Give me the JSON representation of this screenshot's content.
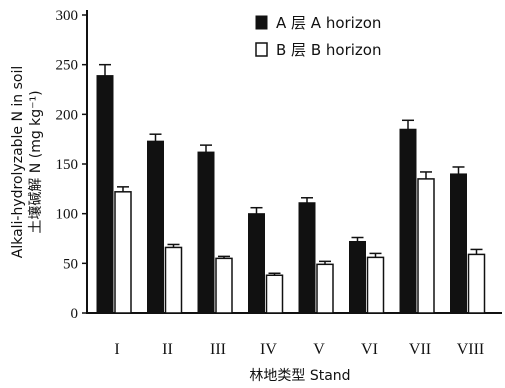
{
  "chart_data": {
    "type": "bar",
    "categories": [
      "I",
      "II",
      "III",
      "IV",
      "V",
      "VI",
      "VII",
      "VIII"
    ],
    "series": [
      {
        "name": "A 层 A horizon",
        "color": "#111111",
        "values": [
          239,
          173,
          162,
          100,
          111,
          72,
          185,
          140
        ],
        "errors": [
          11,
          7,
          7,
          6,
          5,
          4,
          9,
          7
        ]
      },
      {
        "name": "B 层 B horizon",
        "color": "#ffffff",
        "values": [
          122,
          66,
          55,
          38,
          49,
          56,
          135,
          59
        ],
        "errors": [
          5,
          3,
          2,
          2,
          3,
          4,
          7,
          5
        ]
      }
    ],
    "ylim": [
      0,
      300
    ],
    "yticks": [
      0,
      50,
      100,
      150,
      200,
      250,
      300
    ],
    "ylabel_line1": "Alkali-hydrolyzable N in soil",
    "ylabel_line2": "土壤碱解 N (mg kg⁻¹)",
    "xlabel": "林地类型 Stand",
    "legend_position": "top-right",
    "grid": false
  }
}
